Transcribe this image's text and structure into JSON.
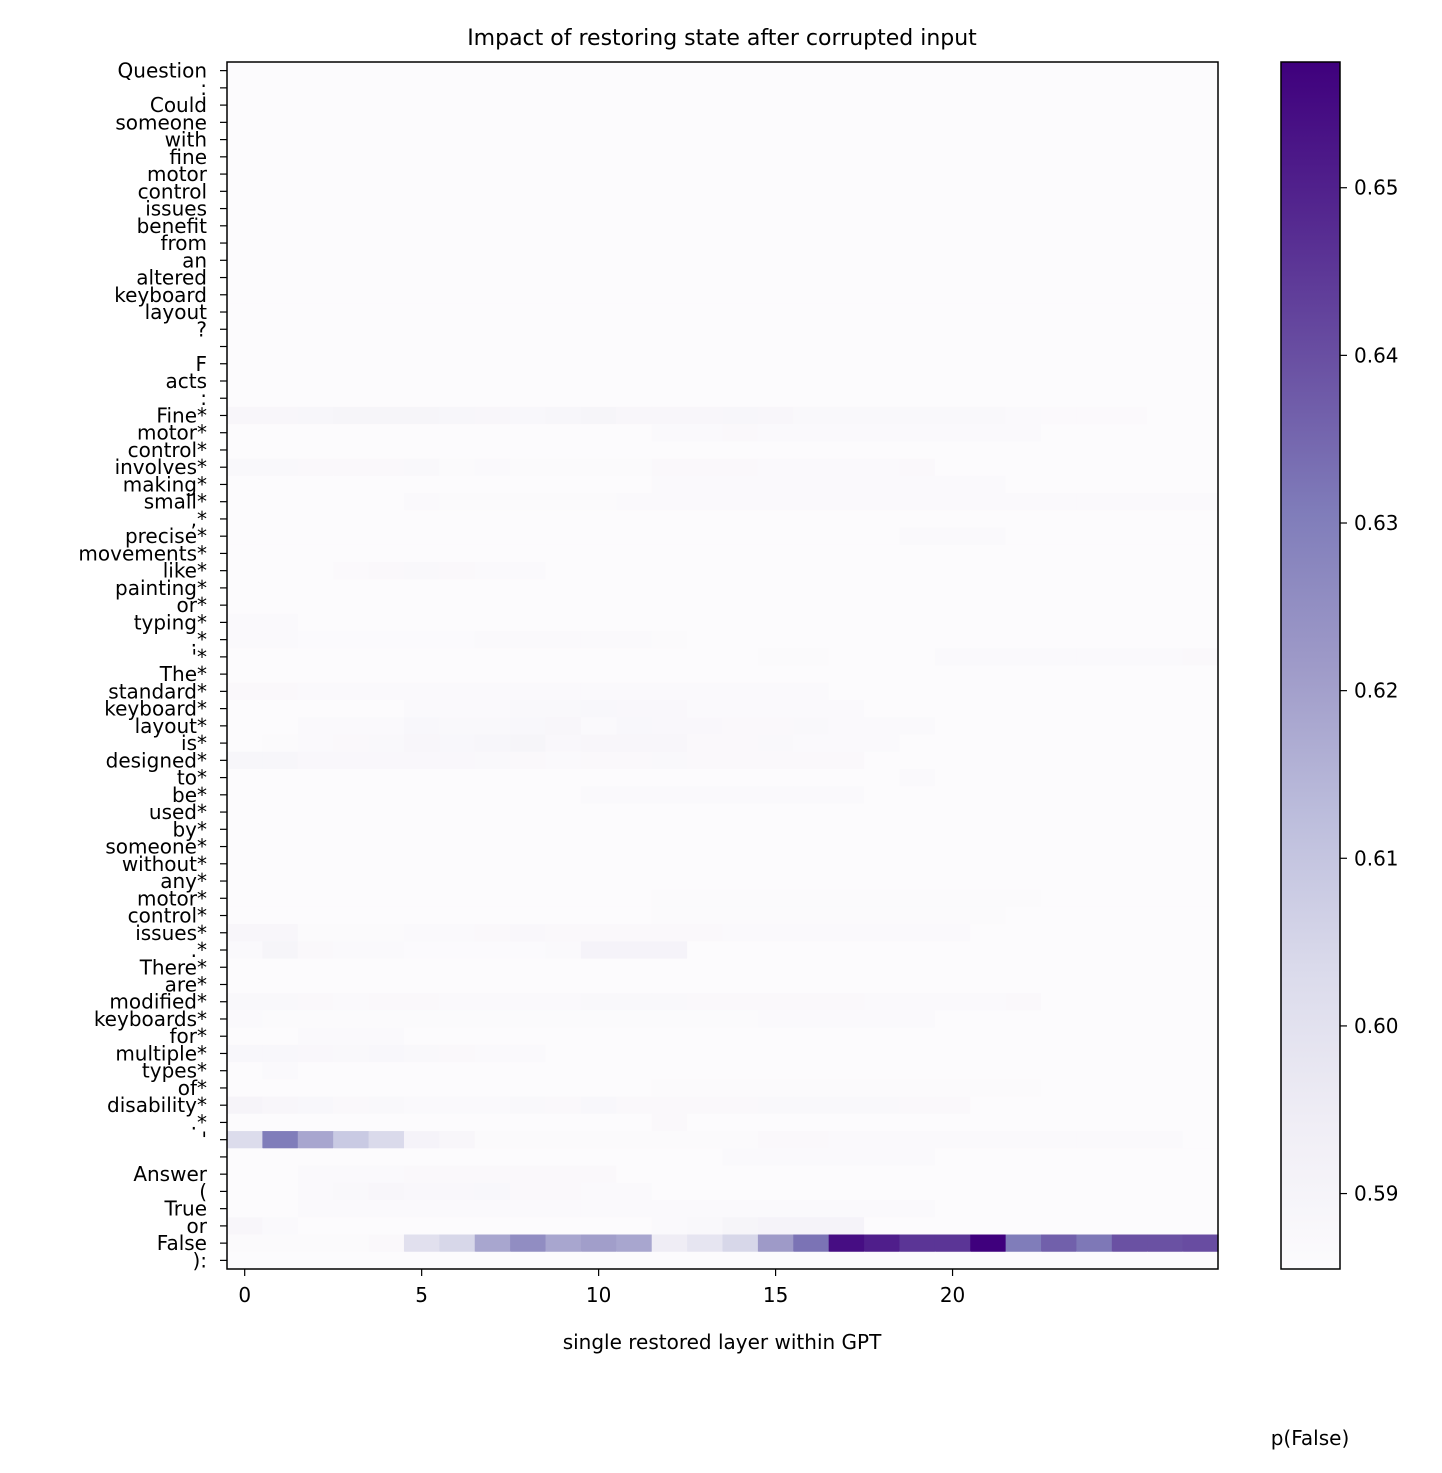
{
  "chart_data": {
    "type": "heatmap",
    "title": "Impact of restoring state after corrupted input",
    "xlabel": "single restored layer within GPT",
    "ylabel": "",
    "colorbar_label": "p(False)",
    "x_ticks": [
      0,
      5,
      10,
      15,
      20
    ],
    "x_range": [
      0,
      27
    ],
    "colorbar_ticks": [
      0.59,
      0.6,
      0.61,
      0.62,
      0.63,
      0.64,
      0.65
    ],
    "color_range": [
      0.5855,
      0.6575
    ],
    "colormap": [
      "#fcfbfd",
      "#efedf5",
      "#dadaeb",
      "#bcbddc",
      "#9e9ac8",
      "#807dba",
      "#6a51a3",
      "#54278f",
      "#3f007d"
    ],
    "grid": false,
    "tokens": [
      "Question",
      ":",
      "Could",
      "someone",
      "with",
      "fine",
      "motor",
      "control",
      "issues",
      "benefit",
      "from",
      "an",
      "altered",
      "keyboard",
      "layout",
      "?",
      "",
      "F",
      "acts",
      ":",
      "Fine*",
      "motor*",
      "control*",
      "involves*",
      "making*",
      "small*",
      ",*",
      "precise*",
      "movements*",
      "like*",
      "painting*",
      "or*",
      "typing*",
      ".*",
      "'*",
      "The*",
      "standard*",
      "keyboard*",
      "layout*",
      "is*",
      "designed*",
      "to*",
      "be*",
      "used*",
      "by*",
      "someone*",
      "without*",
      "any*",
      "motor*",
      "control*",
      "issues*",
      ".*",
      "There*",
      "are*",
      "modified*",
      "keyboards*",
      "for*",
      "multiple*",
      "types*",
      "of*",
      "disability*",
      ".*",
      "'",
      "",
      "Answer",
      "(",
      "True",
      "or",
      "False",
      "):"
    ],
    "base_value": 0.5858,
    "cells": [
      {
        "row": 20,
        "values": [
          0.5885,
          0.5885,
          0.589,
          0.5895,
          0.5895,
          0.5895,
          0.589,
          0.5885,
          0.588,
          0.589,
          0.5895,
          0.5885,
          0.5885,
          0.5885,
          0.589,
          0.5885,
          0.5875,
          0.5875,
          0.5875,
          0.5875,
          0.5875,
          0.5875,
          0.5868,
          0.5865,
          0.5865,
          0.5865,
          0.5858,
          0.5858
        ]
      },
      {
        "row": 21,
        "from": 12,
        "values": [
          0.5868,
          0.587,
          0.5872,
          0.587,
          0.5866,
          0.5866,
          0.5866,
          0.5866,
          0.5866,
          0.5866,
          0.5866
        ]
      },
      {
        "row": 23,
        "values": [
          0.5875,
          0.5875,
          0.5872,
          0.5872,
          0.5872,
          0.5875,
          0.5862,
          0.5868,
          0.5862,
          0.5862,
          0.5862,
          0.5862,
          0.5872,
          0.5872,
          0.5872,
          0.5868,
          0.5868,
          0.5868,
          0.5868,
          0.5872
        ]
      },
      {
        "row": 24,
        "from": 12,
        "values": [
          0.5868,
          0.5868,
          0.5868,
          0.5868,
          0.5866,
          0.5866,
          0.5866,
          0.5866,
          0.5866,
          0.5866
        ]
      },
      {
        "row": 25,
        "from": 5,
        "values": [
          0.5868,
          0.5862,
          0.5862,
          0.5862,
          0.5862,
          0.5862,
          0.5866,
          0.5868,
          0.5868,
          0.5868,
          0.5868,
          0.5868,
          0.5868,
          0.5868,
          0.5868,
          0.5868,
          0.5868,
          0.5868,
          0.5868,
          0.5868,
          0.5866,
          0.5866,
          0.5866
        ]
      },
      {
        "row": 27,
        "from": 19,
        "values": [
          0.5868,
          0.5868,
          0.5868
        ]
      },
      {
        "row": 29,
        "from": 3,
        "values": [
          0.5865,
          0.5872,
          0.5875,
          0.5872,
          0.587,
          0.5868
        ]
      },
      {
        "row": 32,
        "values": [
          0.5868,
          0.5866
        ]
      },
      {
        "row": 33,
        "values": [
          0.5866,
          0.5866,
          0.586,
          0.586,
          0.586,
          0.586,
          0.586,
          0.5868,
          0.5868,
          0.5866,
          0.5866,
          0.5868,
          0.5862
        ]
      },
      {
        "row": 34,
        "from": 15,
        "values": [
          0.5864,
          0.5864,
          0.5858,
          0.5858,
          0.5858,
          0.5866,
          0.5866,
          0.5866,
          0.5866,
          0.5866,
          0.5866,
          0.5866,
          0.5872
        ]
      },
      {
        "row": 36,
        "values": [
          0.5872,
          0.5872,
          0.5866,
          0.5866,
          0.5866,
          0.5866,
          0.5866,
          0.5866,
          0.587,
          0.5866,
          0.5866,
          0.5866,
          0.5866,
          0.5866,
          0.587,
          0.5866,
          0.5866
        ]
      },
      {
        "row": 37,
        "from": 5,
        "values": [
          0.587,
          0.587,
          0.587,
          0.5875,
          0.5875,
          0.5882,
          0.5878,
          0.5878,
          0.587,
          0.587,
          0.587,
          0.587,
          0.587
        ]
      },
      {
        "row": 38,
        "from": 2,
        "values": [
          0.5866,
          0.5866,
          0.5866,
          0.588,
          0.5875,
          0.5875,
          0.588,
          0.5885,
          0.587,
          0.5882,
          0.5878,
          0.5878,
          0.5872,
          0.5872,
          0.5875,
          0.5868,
          0.587,
          0.5866
        ]
      },
      {
        "row": 39,
        "from": 1,
        "values": [
          0.5864,
          0.5868,
          0.5872,
          0.5875,
          0.5885,
          0.588,
          0.589,
          0.5895,
          0.5878,
          0.5885,
          0.5885,
          0.5885,
          0.5872,
          0.5872,
          0.5875,
          0.587,
          0.587,
          0.5866
        ]
      },
      {
        "row": 40,
        "values": [
          0.589,
          0.589,
          0.5878,
          0.5878,
          0.5878,
          0.5878,
          0.5878,
          0.5875,
          0.5872,
          0.5866,
          0.5872,
          0.5872,
          0.5875,
          0.5872,
          0.5872,
          0.5872,
          0.5872,
          0.5872
        ]
      },
      {
        "row": 41,
        "from": 19,
        "values": [
          0.5866
        ]
      },
      {
        "row": 42,
        "from": 10,
        "values": [
          0.5866,
          0.5868,
          0.5866,
          0.5866,
          0.5866,
          0.587,
          0.587,
          0.587
        ]
      },
      {
        "row": 48,
        "from": 12,
        "values": [
          0.5864,
          0.5864,
          0.5864,
          0.5864,
          0.5864,
          0.5864,
          0.5864,
          0.5864,
          0.5864,
          0.5864,
          0.5864
        ]
      },
      {
        "row": 49,
        "from": 12,
        "values": [
          0.5864,
          0.5864,
          0.5864,
          0.5864,
          0.5864,
          0.5864,
          0.5864,
          0.5864,
          0.5864,
          0.5864
        ]
      },
      {
        "row": 50,
        "values": [
          0.5885,
          0.5885,
          0.5862,
          0.5862,
          0.5862,
          0.5868,
          0.5868,
          0.5872,
          0.5878,
          0.5872,
          0.5872,
          0.5872,
          0.5872,
          0.5872,
          0.5868,
          0.5868,
          0.5868,
          0.5868,
          0.5868,
          0.5868,
          0.5866
        ]
      },
      {
        "row": 51,
        "values": [
          0.5866,
          0.5895,
          0.5872,
          0.5868,
          0.5868,
          0.586,
          0.586,
          0.586,
          0.586,
          0.5866,
          0.5905,
          0.5905,
          0.5905
        ]
      },
      {
        "row": 54,
        "values": [
          0.5875,
          0.5875,
          0.5872,
          0.5866,
          0.5872,
          0.5872,
          0.5868,
          0.5868,
          0.5868,
          0.5866,
          0.5875,
          0.5875,
          0.5875,
          0.5872,
          0.5872,
          0.5872,
          0.5872,
          0.5872,
          0.587,
          0.587,
          0.5866,
          0.5866,
          0.5872
        ]
      },
      {
        "row": 55,
        "values": [
          0.5866,
          0.5862,
          0.5862,
          0.5862,
          0.5862,
          0.5862,
          0.5862,
          0.5862,
          0.5862,
          0.5862,
          0.5862,
          0.5862,
          0.5862,
          0.5862,
          0.5862,
          0.5868,
          0.5868,
          0.5868,
          0.5866,
          0.5866
        ]
      },
      {
        "row": 56,
        "from": 2,
        "values": [
          0.5866,
          0.5866,
          0.587
        ]
      },
      {
        "row": 57,
        "values": [
          0.588,
          0.588,
          0.5878,
          0.5875,
          0.5882,
          0.5875,
          0.5872,
          0.587,
          0.5866
        ]
      },
      {
        "row": 58,
        "from": 1,
        "values": [
          0.5866
        ]
      },
      {
        "row": 59,
        "from": 12,
        "values": [
          0.5862,
          0.5862,
          0.5862,
          0.5862,
          0.5862,
          0.5862,
          0.5862,
          0.5862,
          0.5862,
          0.5862,
          0.5862
        ]
      },
      {
        "row": 60,
        "values": [
          0.59,
          0.5885,
          0.588,
          0.5872,
          0.5875,
          0.5868,
          0.5868,
          0.5866,
          0.5875,
          0.5872,
          0.588,
          0.5872,
          0.5872,
          0.5872,
          0.5872,
          0.5875,
          0.5875,
          0.5875,
          0.5875,
          0.5872,
          0.5872
        ]
      },
      {
        "row": 61,
        "from": 12,
        "values": [
          0.5872
        ]
      },
      {
        "row": 62,
        "values": [
          0.6025,
          0.6305,
          0.6185,
          0.6085,
          0.6035,
          0.5905,
          0.5885,
          0.5862,
          0.5862,
          0.5862,
          0.5862,
          0.5862,
          0.5862,
          0.5862,
          0.5862,
          0.5872,
          0.5872,
          0.5868,
          0.5868,
          0.587,
          0.587,
          0.5866,
          0.5866,
          0.5866,
          0.5866,
          0.5866,
          0.5866
        ]
      },
      {
        "row": 63,
        "from": 14,
        "values": [
          0.5866,
          0.5866,
          0.5866,
          0.5866,
          0.5866,
          0.5866
        ]
      },
      {
        "row": 64,
        "from": 2,
        "values": [
          0.5866,
          0.5866,
          0.587,
          0.5872,
          0.5872,
          0.5872,
          0.5872,
          0.5872,
          0.5872
        ]
      },
      {
        "row": 65,
        "from": 2,
        "values": [
          0.5868,
          0.5875,
          0.5885,
          0.5878,
          0.5878,
          0.5882,
          0.5872,
          0.5872,
          0.5868,
          0.5866
        ]
      },
      {
        "row": 66,
        "from": 2,
        "values": [
          0.5866,
          0.587,
          0.5866,
          0.5866,
          0.5866,
          0.5866,
          0.5866,
          0.5866,
          0.5866,
          0.5866,
          0.5866,
          0.5866,
          0.5866,
          0.5866,
          0.5866,
          0.5866,
          0.5866,
          0.5866
        ]
      },
      {
        "row": 67,
        "values": [
          0.5885,
          0.5868,
          0.5858,
          0.5858,
          0.5858,
          0.5858,
          0.5858,
          0.5858,
          0.5858,
          0.5858,
          0.5858,
          0.5858,
          0.587,
          0.5875,
          0.5895,
          0.5905,
          0.5905,
          0.5905
        ]
      },
      {
        "row": 68,
        "values": [
          0.5862,
          0.5862,
          0.5862,
          0.5862,
          0.5872,
          0.6005,
          0.6045,
          0.6185,
          0.6255,
          0.6185,
          0.6205,
          0.6185,
          0.5945,
          0.5985,
          0.6045,
          0.6215,
          0.6325,
          0.6545,
          0.6505,
          0.6455,
          0.6455,
          0.6575,
          0.6305,
          0.6365,
          0.6315,
          0.6395,
          0.6395,
          0.6405
        ]
      }
    ]
  }
}
